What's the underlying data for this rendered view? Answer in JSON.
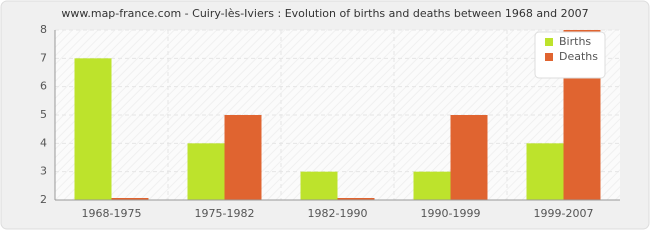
{
  "chart_data": {
    "type": "bar",
    "title": "www.map-france.com - Cuiry-lès-Iviers : Evolution of births and deaths between 1968 and 2007",
    "categories": [
      "1968-1975",
      "1975-1982",
      "1982-1990",
      "1990-1999",
      "1999-2007"
    ],
    "series": [
      {
        "name": "Births",
        "color": "#bde32c",
        "values": [
          7,
          4,
          3,
          3,
          4
        ]
      },
      {
        "name": "Deaths",
        "color": "#e06430",
        "values": [
          2,
          5,
          2,
          5,
          8
        ]
      }
    ],
    "ylim": [
      2,
      8
    ],
    "yticks": [
      2,
      3,
      4,
      5,
      6,
      7,
      8
    ],
    "grid": true,
    "legend": "top-right"
  }
}
